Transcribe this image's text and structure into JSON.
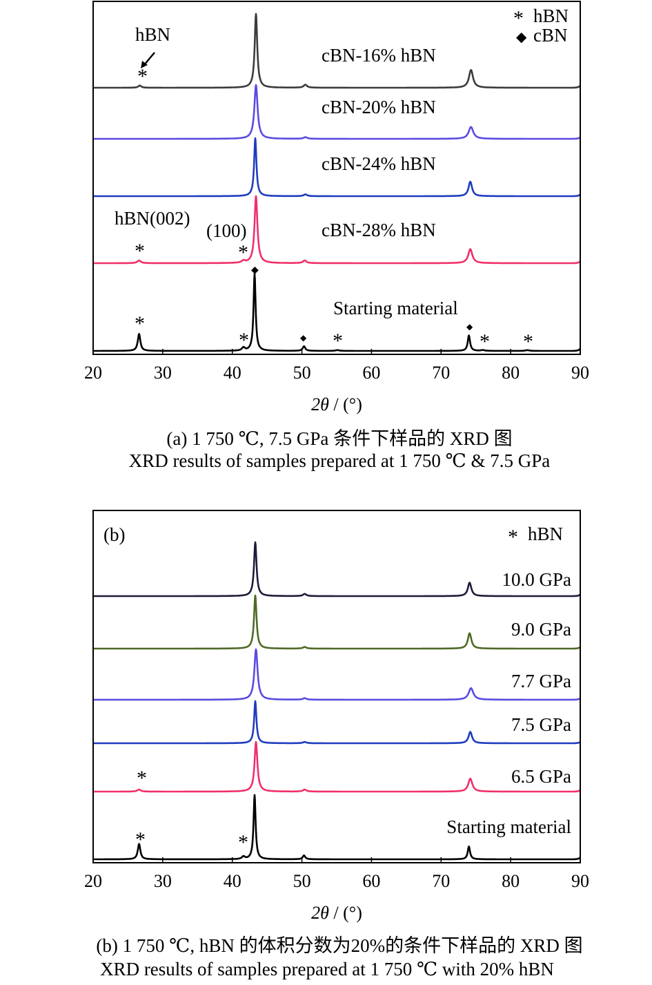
{
  "chart_data": [
    {
      "type": "line",
      "panel_label": "",
      "xlabel_symbol": "2θ",
      "xlabel_unit": " / (°)",
      "xlim": [
        20,
        90
      ],
      "xticks": [
        20,
        30,
        40,
        50,
        60,
        70,
        80,
        90
      ],
      "legend": [
        {
          "symbol": "*",
          "text": "hBN"
        },
        {
          "symbol": "◆",
          "text": "cBN"
        }
      ],
      "series": [
        {
          "name": "cBN-16% hBN",
          "color": "#3b3b3b",
          "peaks": [
            {
              "x": 26.7,
              "h": 0.03,
              "w": 0.25
            },
            {
              "x": 43.4,
              "h": 1.0,
              "w": 0.22
            },
            {
              "x": 50.5,
              "h": 0.04,
              "w": 0.3
            },
            {
              "x": 74.3,
              "h": 0.24,
              "w": 0.35
            }
          ]
        },
        {
          "name": "cBN-20% hBN",
          "color": "#5a4be0",
          "peaks": [
            {
              "x": 43.4,
              "h": 1.0,
              "w": 0.28
            },
            {
              "x": 50.5,
              "h": 0.03,
              "w": 0.3
            },
            {
              "x": 74.3,
              "h": 0.22,
              "w": 0.4
            }
          ]
        },
        {
          "name": "cBN-24% hBN",
          "color": "#1f3cbf",
          "peaks": [
            {
              "x": 43.3,
              "h": 1.0,
              "w": 0.2
            },
            {
              "x": 50.5,
              "h": 0.03,
              "w": 0.3
            },
            {
              "x": 74.2,
              "h": 0.25,
              "w": 0.3
            }
          ]
        },
        {
          "name": "cBN-28% hBN",
          "color": "#f0306a",
          "peaks": [
            {
              "x": 26.6,
              "h": 0.04,
              "w": 0.3
            },
            {
              "x": 41.6,
              "h": 0.03,
              "w": 0.3
            },
            {
              "x": 43.4,
              "h": 1.0,
              "w": 0.25
            },
            {
              "x": 50.4,
              "h": 0.04,
              "w": 0.3
            },
            {
              "x": 74.2,
              "h": 0.21,
              "w": 0.35
            }
          ]
        },
        {
          "name": "Starting material",
          "color": "#000000",
          "peaks": [
            {
              "x": 26.6,
              "h": 0.22,
              "w": 0.22
            },
            {
              "x": 41.6,
              "h": 0.04,
              "w": 0.25
            },
            {
              "x": 43.2,
              "h": 1.0,
              "w": 0.18
            },
            {
              "x": 50.3,
              "h": 0.06,
              "w": 0.22
            },
            {
              "x": 55.1,
              "h": 0.01,
              "w": 0.3
            },
            {
              "x": 74.0,
              "h": 0.2,
              "w": 0.2
            },
            {
              "x": 76.0,
              "h": 0.01,
              "w": 0.3
            },
            {
              "x": 82.4,
              "h": 0.01,
              "w": 0.3
            }
          ]
        }
      ],
      "annotations": {
        "arrow_label": "hBN",
        "hbn002_label": "hBN(002)",
        "hbn100_label": "(100)"
      },
      "caption_cn": "(a) 1 750 ℃, 7.5 GPa 条件下样品的 XRD 图",
      "caption_en": "XRD results of samples prepared at 1 750 ℃ & 7.5 GPa"
    },
    {
      "type": "line",
      "panel_label": "(b)",
      "xlabel_symbol": "2θ",
      "xlabel_unit": " / (°)",
      "xlim": [
        20,
        90
      ],
      "xticks": [
        20,
        30,
        40,
        50,
        60,
        70,
        80,
        90
      ],
      "legend": [
        {
          "symbol": "*",
          "text": "hBN"
        }
      ],
      "series": [
        {
          "name": "10.0 GPa",
          "color": "#1c1c3a",
          "peaks": [
            {
              "x": 43.3,
              "h": 1.0,
              "w": 0.22
            },
            {
              "x": 50.4,
              "h": 0.04,
              "w": 0.3
            },
            {
              "x": 74.1,
              "h": 0.25,
              "w": 0.3
            }
          ]
        },
        {
          "name": "9.0 GPa",
          "color": "#4e6a26",
          "peaks": [
            {
              "x": 43.3,
              "h": 1.0,
              "w": 0.22
            },
            {
              "x": 50.4,
              "h": 0.03,
              "w": 0.3
            },
            {
              "x": 74.1,
              "h": 0.29,
              "w": 0.3
            }
          ]
        },
        {
          "name": "7.7 GPa",
          "color": "#5a4be0",
          "peaks": [
            {
              "x": 43.4,
              "h": 1.0,
              "w": 0.28
            },
            {
              "x": 50.4,
              "h": 0.03,
              "w": 0.3
            },
            {
              "x": 74.3,
              "h": 0.23,
              "w": 0.4
            }
          ]
        },
        {
          "name": "7.5 GPa",
          "color": "#1f3cbf",
          "peaks": [
            {
              "x": 43.3,
              "h": 1.0,
              "w": 0.2
            },
            {
              "x": 50.4,
              "h": 0.03,
              "w": 0.3
            },
            {
              "x": 74.2,
              "h": 0.27,
              "w": 0.3
            }
          ]
        },
        {
          "name": "6.5 GPa",
          "color": "#f0306a",
          "peaks": [
            {
              "x": 26.6,
              "h": 0.04,
              "w": 0.3
            },
            {
              "x": 43.4,
              "h": 1.0,
              "w": 0.25
            },
            {
              "x": 50.4,
              "h": 0.04,
              "w": 0.3
            },
            {
              "x": 74.2,
              "h": 0.26,
              "w": 0.35
            }
          ]
        },
        {
          "name": "Starting material",
          "color": "#000000",
          "peaks": [
            {
              "x": 26.6,
              "h": 0.24,
              "w": 0.22
            },
            {
              "x": 41.6,
              "h": 0.04,
              "w": 0.25
            },
            {
              "x": 43.2,
              "h": 1.0,
              "w": 0.18
            },
            {
              "x": 50.3,
              "h": 0.06,
              "w": 0.22
            },
            {
              "x": 74.0,
              "h": 0.2,
              "w": 0.2
            }
          ]
        }
      ],
      "caption_cn": "(b) 1 750 ℃, hBN 的体积分数为20%的条件下样品的 XRD 图",
      "caption_en": "XRD results of samples prepared at 1 750 ℃ with 20% hBN"
    }
  ]
}
